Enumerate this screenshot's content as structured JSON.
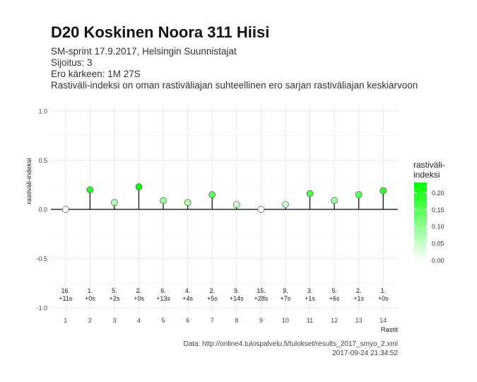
{
  "header": {
    "title": "D20 Koskinen Noora 311 Hiisi",
    "subtitle_lines": [
      "SM-sprint 17.9.2017, Helsingin Suunnistajat",
      "Sijoitus: 3",
      "Ero kärkeen: 1M 27S",
      "Rastiväli-indeksi on oman rastiväliajan suhteellinen ero sarjan rastiväliajan keskiarvoon"
    ]
  },
  "footer": {
    "source": "Data: http://online4.tulospalvelu.fi/tulokset/results_2017_smyo_2.xml",
    "timestamp": "2017-09-24 21:34:52"
  },
  "chart_data": {
    "type": "scatter",
    "style": "lollipop",
    "x": [
      1,
      2,
      3,
      4,
      5,
      6,
      7,
      8,
      9,
      10,
      11,
      12,
      13,
      14
    ],
    "values": [
      0.0,
      0.2,
      0.07,
      0.23,
      0.09,
      0.07,
      0.15,
      0.05,
      0.0,
      0.05,
      0.16,
      0.09,
      0.15,
      0.19
    ],
    "annotations": [
      [
        "16.",
        "+11s"
      ],
      [
        "1.",
        "+0s"
      ],
      [
        "5.",
        "+2s"
      ],
      [
        "2.",
        "+0s"
      ],
      [
        "6.",
        "+13s"
      ],
      [
        "4.",
        "+4s"
      ],
      [
        "2.",
        "+5s"
      ],
      [
        "9.",
        "+14s"
      ],
      [
        "15.",
        "+28s"
      ],
      [
        "9.",
        "+7s"
      ],
      [
        "3.",
        "+1s"
      ],
      [
        "5.",
        "+6s"
      ],
      [
        "2.",
        "+1s"
      ],
      [
        "1.",
        "+0s"
      ]
    ],
    "xlabel": "Rastit",
    "ylabel": "rastiväli-indeksi",
    "xticks": [
      "1",
      "2",
      "3",
      "4",
      "5",
      "6",
      "7",
      "8",
      "9",
      "10",
      "11",
      "12",
      "13",
      "14"
    ],
    "yticks": [
      "-1.0",
      "-0.5",
      "0.0",
      "0.5",
      "1.0"
    ],
    "ytick_values": [
      -1.0,
      -0.5,
      0.0,
      0.5,
      1.0
    ],
    "xlim": [
      0.4,
      14.6
    ],
    "ylim": [
      -1.05,
      1.05
    ],
    "grid": true,
    "legend": {
      "title_lines": [
        "rastiväli-",
        "indeksi"
      ],
      "placement": "right",
      "ticks": [
        "0.00",
        "0.05",
        "0.10",
        "0.15",
        "0.20"
      ],
      "tick_values": [
        0.0,
        0.05,
        0.1,
        0.15,
        0.2
      ],
      "range": [
        0.0,
        0.23
      ]
    },
    "colors": {
      "low": "#ffffff",
      "high": "#00ff00",
      "baseline": "#000000",
      "grid": "#e6e6e6"
    }
  }
}
